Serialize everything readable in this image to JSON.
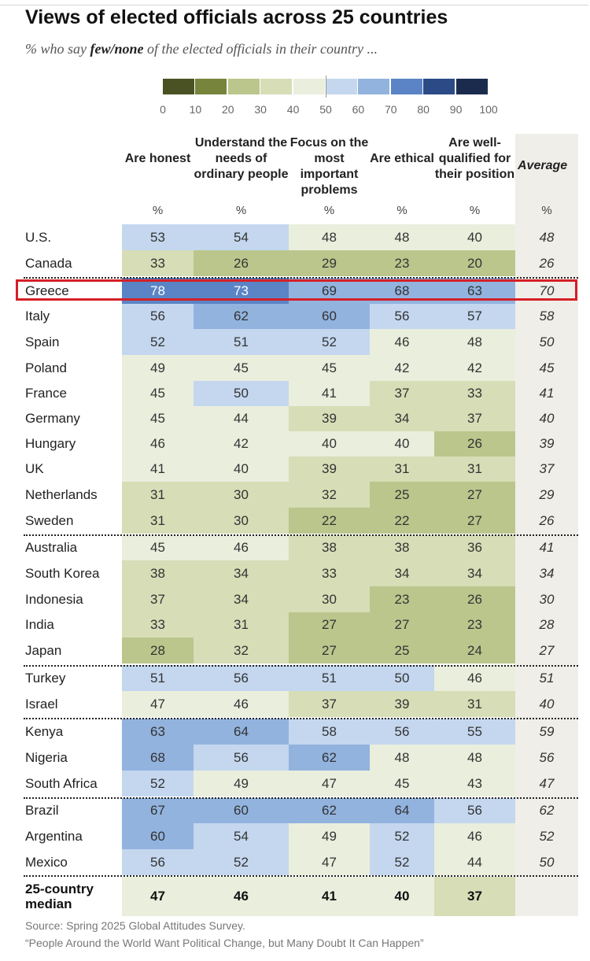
{
  "title": "Views of elected officials across 25 countries",
  "subtitle_prefix": "% who say ",
  "subtitle_emph": "few/none",
  "subtitle_suffix": " of the elected officials in their country ...",
  "legend": {
    "ticks": [
      "0",
      "10",
      "20",
      "30",
      "40",
      "50",
      "60",
      "70",
      "80",
      "90",
      "100"
    ],
    "colors": [
      "#4a5224",
      "#76843c",
      "#bac68c",
      "#d7ddb6",
      "#eaeedd",
      "#c4d7ef",
      "#92b3de",
      "#5a84c5",
      "#2c4a86",
      "#1a2b4e"
    ]
  },
  "columns": [
    {
      "label": "Are honest",
      "unit": "%"
    },
    {
      "label": "Understand the needs of ordinary people",
      "unit": "%"
    },
    {
      "label": "Focus on the most important problems",
      "unit": "%"
    },
    {
      "label": "Are ethical",
      "unit": "%"
    },
    {
      "label": "Are well-qualified for their position",
      "unit": "%"
    }
  ],
  "average_header": "Average",
  "average_unit": "%",
  "chart_data": {
    "type": "heatmap",
    "title": "Views of elected officials across 25 countries",
    "subtitle": "% who say few/none of the elected officials in their country ...",
    "highlighted_row": "Greece",
    "columns": [
      "Are honest",
      "Understand the needs of ordinary people",
      "Focus on the most important problems",
      "Are ethical",
      "Are well-qualified for their position"
    ],
    "rows": [
      {
        "country": "U.S.",
        "values": [
          53,
          54,
          48,
          48,
          40
        ],
        "average": 48
      },
      {
        "country": "Canada",
        "values": [
          33,
          26,
          29,
          23,
          20
        ],
        "average": 26
      },
      {
        "country": "Greece",
        "values": [
          78,
          73,
          69,
          68,
          63
        ],
        "average": 70
      },
      {
        "country": "Italy",
        "values": [
          56,
          62,
          60,
          56,
          57
        ],
        "average": 58
      },
      {
        "country": "Spain",
        "values": [
          52,
          51,
          52,
          46,
          48
        ],
        "average": 50
      },
      {
        "country": "Poland",
        "values": [
          49,
          45,
          45,
          42,
          42
        ],
        "average": 45
      },
      {
        "country": "France",
        "values": [
          45,
          50,
          41,
          37,
          33
        ],
        "average": 41
      },
      {
        "country": "Germany",
        "values": [
          45,
          44,
          39,
          34,
          37
        ],
        "average": 40
      },
      {
        "country": "Hungary",
        "values": [
          46,
          42,
          40,
          40,
          26
        ],
        "average": 39
      },
      {
        "country": "UK",
        "values": [
          41,
          40,
          39,
          31,
          31
        ],
        "average": 37
      },
      {
        "country": "Netherlands",
        "values": [
          31,
          30,
          32,
          25,
          27
        ],
        "average": 29
      },
      {
        "country": "Sweden",
        "values": [
          31,
          30,
          22,
          22,
          27
        ],
        "average": 26
      },
      {
        "country": "Australia",
        "values": [
          45,
          46,
          38,
          38,
          36
        ],
        "average": 41
      },
      {
        "country": "South Korea",
        "values": [
          38,
          34,
          33,
          34,
          34
        ],
        "average": 34
      },
      {
        "country": "Indonesia",
        "values": [
          37,
          34,
          30,
          23,
          26
        ],
        "average": 30
      },
      {
        "country": "India",
        "values": [
          33,
          31,
          27,
          27,
          23
        ],
        "average": 28
      },
      {
        "country": "Japan",
        "values": [
          28,
          32,
          27,
          25,
          24
        ],
        "average": 27
      },
      {
        "country": "Turkey",
        "values": [
          51,
          56,
          51,
          50,
          46
        ],
        "average": 51
      },
      {
        "country": "Israel",
        "values": [
          47,
          46,
          37,
          39,
          31
        ],
        "average": 40
      },
      {
        "country": "Kenya",
        "values": [
          63,
          64,
          58,
          56,
          55
        ],
        "average": 59
      },
      {
        "country": "Nigeria",
        "values": [
          68,
          56,
          62,
          48,
          48
        ],
        "average": 56
      },
      {
        "country": "South Africa",
        "values": [
          52,
          49,
          47,
          45,
          43
        ],
        "average": 47
      },
      {
        "country": "Brazil",
        "values": [
          67,
          60,
          62,
          64,
          56
        ],
        "average": 62
      },
      {
        "country": "Argentina",
        "values": [
          60,
          54,
          49,
          52,
          46
        ],
        "average": 52
      },
      {
        "country": "Mexico",
        "values": [
          56,
          52,
          47,
          52,
          44
        ],
        "average": 50
      }
    ],
    "median": {
      "label": "25-country median",
      "values": [
        47,
        46,
        41,
        40,
        37
      ]
    },
    "region_breaks_after": [
      "Canada",
      "Sweden",
      "Japan",
      "Israel",
      "South Africa"
    ]
  },
  "source": "Source: Spring 2025 Global Attitudes Survey.",
  "report_title": "“People Around the World Want Political Change, but Many Doubt It Can Happen”"
}
